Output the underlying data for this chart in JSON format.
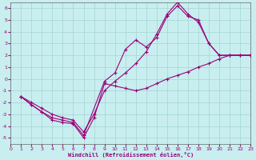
{
  "xlabel": "Windchill (Refroidissement éolien,°C)",
  "xlim": [
    0,
    23
  ],
  "ylim": [
    -5.5,
    6.5
  ],
  "xticks": [
    0,
    1,
    2,
    3,
    4,
    5,
    6,
    7,
    8,
    9,
    10,
    11,
    12,
    13,
    14,
    15,
    16,
    17,
    18,
    19,
    20,
    21,
    22,
    23
  ],
  "yticks": [
    -5,
    -4,
    -3,
    -2,
    -1,
    0,
    1,
    2,
    3,
    4,
    5,
    6
  ],
  "bg_color": "#c8eef0",
  "grid_color": "#aad8d8",
  "line_color": "#990077",
  "line1_x": [
    1,
    2,
    3,
    4,
    5,
    6,
    7,
    8,
    9,
    10,
    11,
    12,
    13,
    14,
    15,
    16,
    17,
    18,
    19,
    20,
    21,
    22,
    23
  ],
  "line1_y": [
    -1.5,
    -2.2,
    -2.8,
    -3.5,
    -3.7,
    -3.8,
    -5.0,
    -3.3,
    -0.4,
    -0.6,
    -0.8,
    -1.0,
    -0.8,
    -0.4,
    0.0,
    0.3,
    0.6,
    1.0,
    1.3,
    1.7,
    2.0,
    2.0,
    2.0
  ],
  "line2_x": [
    1,
    2,
    3,
    4,
    5,
    6,
    7,
    9,
    10,
    11,
    12,
    13,
    14,
    15,
    16,
    17,
    18,
    19,
    20,
    21,
    22,
    23
  ],
  "line2_y": [
    -1.5,
    -2.2,
    -2.8,
    -3.3,
    -3.5,
    -3.7,
    -4.8,
    -0.2,
    0.5,
    2.5,
    3.3,
    2.7,
    3.5,
    5.3,
    6.2,
    5.3,
    5.0,
    3.0,
    2.0,
    2.0,
    2.0,
    2.0
  ],
  "line3_x": [
    1,
    2,
    3,
    4,
    5,
    6,
    7,
    8,
    9,
    10,
    11,
    12,
    13,
    14,
    15,
    16,
    17,
    18,
    19,
    20,
    21,
    22,
    23
  ],
  "line3_y": [
    -1.5,
    -2.0,
    -2.5,
    -3.0,
    -3.3,
    -3.5,
    -4.5,
    -3.0,
    -1.0,
    -0.2,
    0.5,
    1.3,
    2.3,
    3.8,
    5.5,
    6.5,
    5.5,
    4.8,
    3.0,
    2.0,
    2.0,
    2.0,
    2.0
  ]
}
